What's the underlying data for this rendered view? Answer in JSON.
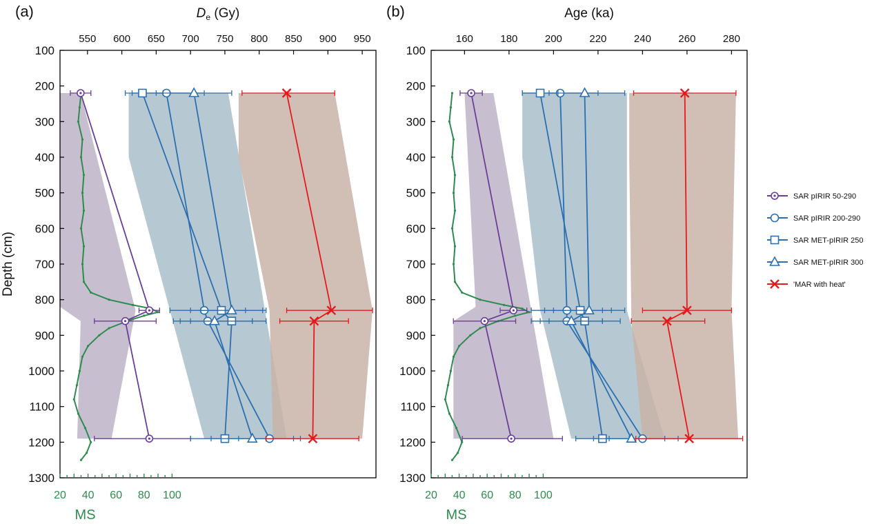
{
  "colors": {
    "purple": "#6a3d9a",
    "blue": "#2b6fb0",
    "red": "#e31a1c",
    "ms_green": "#2e8b4e",
    "band_purple": "#bdb4c7",
    "band_blue": "#a9bec9",
    "band_red": "#c9b4a8"
  },
  "legend": {
    "s1": "SAR pIRIR 50-290",
    "s2": "SAR pIRIR 200-290",
    "s3": "SAR MET-pIRIR 250",
    "s4": "SAR MET-pIRIR 300",
    "s5": "'MAR with heat'"
  },
  "chart_data": [
    {
      "type": "scatter",
      "panel_label": "(a)",
      "title_prefix": "D",
      "title_sub": "e",
      "title_suffix": " (Gy)",
      "ylabel": "Depth (cm)",
      "ylim": [
        1300,
        100
      ],
      "yticks": [
        100,
        200,
        300,
        400,
        500,
        600,
        700,
        800,
        900,
        1000,
        1100,
        1200,
        1300
      ],
      "xlim": [
        510,
        970
      ],
      "xticks": [
        550,
        600,
        650,
        700,
        750,
        800,
        850,
        900,
        950
      ],
      "ms_axis": {
        "label": "MS",
        "xlim": [
          20,
          120
        ],
        "ticks_labeled": [
          20,
          40,
          60,
          80,
          100
        ]
      },
      "bands": [
        {
          "color_key": "band_purple",
          "points": [
            [
              510,
              220
            ],
            [
              540,
              220
            ],
            [
              620,
              830
            ],
            [
              585,
              1190
            ],
            [
              535,
              1190
            ],
            [
              540,
              860
            ],
            [
              510,
              820
            ]
          ]
        },
        {
          "color_key": "band_blue",
          "points": [
            [
              610,
              220
            ],
            [
              755,
              220
            ],
            [
              840,
              1190
            ],
            [
              720,
              1190
            ],
            [
              670,
              830
            ],
            [
              610,
              400
            ]
          ]
        },
        {
          "color_key": "band_red",
          "points": [
            [
              770,
              220
            ],
            [
              910,
              220
            ],
            [
              965,
              830
            ],
            [
              950,
              1190
            ],
            [
              820,
              1190
            ],
            [
              815,
              830
            ],
            [
              770,
              400
            ]
          ]
        }
      ],
      "series": [
        {
          "name": "SAR pIRIR 50-290",
          "color_key": "purple",
          "marker": "circle-dot",
          "points": [
            {
              "x": 540,
              "y": 220,
              "err": [
                525,
                555
              ]
            },
            {
              "x": 640,
              "y": 830,
              "err": [
                625,
                655
              ]
            },
            {
              "x": 605,
              "y": 860,
              "err": [
                560,
                650
              ]
            },
            {
              "x": 640,
              "y": 1190,
              "err": [
                560,
                700
              ]
            }
          ]
        },
        {
          "name": "SAR pIRIR 200-290",
          "color_key": "blue",
          "marker": "circle",
          "points": [
            {
              "x": 665,
              "y": 220,
              "err": [
                615,
                720
              ]
            },
            {
              "x": 720,
              "y": 830,
              "err": [
                670,
                780
              ]
            },
            {
              "x": 725,
              "y": 860,
              "err": [
                675,
                790
              ]
            },
            {
              "x": 815,
              "y": 1190,
              "err": [
                770,
                860
              ]
            }
          ]
        },
        {
          "name": "SAR MET-pIRIR 250",
          "color_key": "blue",
          "marker": "square",
          "points": [
            {
              "x": 630,
              "y": 220,
              "err": [
                605,
                660
              ]
            },
            {
              "x": 745,
              "y": 830,
              "err": [
                700,
                805
              ]
            },
            {
              "x": 760,
              "y": 860,
              "err": [
                700,
                810
              ]
            },
            {
              "x": 750,
              "y": 1190,
              "err": [
                700,
                810
              ]
            }
          ]
        },
        {
          "name": "SAR MET-pIRIR 300",
          "color_key": "blue",
          "marker": "triangle",
          "points": [
            {
              "x": 705,
              "y": 220,
              "err": [
                650,
                760
              ]
            },
            {
              "x": 760,
              "y": 830,
              "err": [
                715,
                810
              ]
            },
            {
              "x": 735,
              "y": 860,
              "err": [
                685,
                790
              ]
            },
            {
              "x": 790,
              "y": 1190,
              "err": [
                730,
                850
              ]
            }
          ]
        },
        {
          "name": "'MAR with heat'",
          "color_key": "red",
          "marker": "x",
          "points": [
            {
              "x": 840,
              "y": 220,
              "err": [
                775,
                910
              ]
            },
            {
              "x": 905,
              "y": 830,
              "err": [
                840,
                965
              ]
            },
            {
              "x": 880,
              "y": 860,
              "err": [
                830,
                930
              ]
            },
            {
              "x": 878,
              "y": 1190,
              "err": [
                810,
                945
              ]
            }
          ]
        }
      ]
    },
    {
      "type": "scatter",
      "panel_label": "(b)",
      "title_prefix": "Age (ka)",
      "title_sub": "",
      "title_suffix": "",
      "ylabel": "",
      "ylim": [
        1300,
        100
      ],
      "yticks": [
        100,
        200,
        300,
        400,
        500,
        600,
        700,
        800,
        900,
        1000,
        1100,
        1200,
        1300
      ],
      "xlim": [
        145,
        287
      ],
      "xticks": [
        160,
        180,
        200,
        220,
        240,
        260,
        280
      ],
      "ms_axis": {
        "label": "MS",
        "xlim": [
          20,
          120
        ],
        "ticks_labeled": [
          20,
          40,
          60,
          80,
          100
        ]
      },
      "bands": [
        {
          "color_key": "band_purple",
          "points": [
            [
              160,
              220
            ],
            [
              173,
              220
            ],
            [
              190,
              830
            ],
            [
              200,
              1190
            ],
            [
              155,
              1190
            ],
            [
              155,
              860
            ],
            [
              165,
              820
            ]
          ]
        },
        {
          "color_key": "band_blue",
          "points": [
            [
              186,
              220
            ],
            [
              233,
              220
            ],
            [
              233,
              830
            ],
            [
              250,
              1190
            ],
            [
              208,
              1190
            ],
            [
              194,
              830
            ],
            [
              186,
              400
            ]
          ]
        },
        {
          "color_key": "band_red",
          "points": [
            [
              234,
              220
            ],
            [
              282,
              220
            ],
            [
              280,
              830
            ],
            [
              283,
              1190
            ],
            [
              240,
              1190
            ],
            [
              235,
              860
            ],
            [
              234,
              400
            ]
          ]
        }
      ],
      "series": [
        {
          "name": "SAR pIRIR 50-290",
          "color_key": "purple",
          "marker": "circle-dot",
          "points": [
            {
              "x": 163,
              "y": 220,
              "err": [
                158,
                168
              ]
            },
            {
              "x": 182,
              "y": 830,
              "err": [
                176,
                188
              ]
            },
            {
              "x": 169,
              "y": 860,
              "err": [
                155,
                183
              ]
            },
            {
              "x": 181,
              "y": 1190,
              "err": [
                159,
                204
              ]
            }
          ]
        },
        {
          "name": "SAR pIRIR 200-290",
          "color_key": "blue",
          "marker": "circle",
          "points": [
            {
              "x": 203,
              "y": 220,
              "err": [
                186,
                220
              ]
            },
            {
              "x": 206,
              "y": 830,
              "err": [
                190,
                222
              ]
            },
            {
              "x": 206,
              "y": 860,
              "err": [
                190,
                222
              ]
            },
            {
              "x": 240,
              "y": 1190,
              "err": [
                225,
                256
              ]
            }
          ]
        },
        {
          "name": "SAR MET-pIRIR 250",
          "color_key": "blue",
          "marker": "square",
          "points": [
            {
              "x": 194,
              "y": 220,
              "err": [
                186,
                202
              ]
            },
            {
              "x": 212,
              "y": 830,
              "err": [
                196,
                226
              ]
            },
            {
              "x": 214,
              "y": 860,
              "err": [
                198,
                230
              ]
            },
            {
              "x": 222,
              "y": 1190,
              "err": [
                210,
                234
              ]
            }
          ]
        },
        {
          "name": "SAR MET-pIRIR 300",
          "color_key": "blue",
          "marker": "triangle",
          "points": [
            {
              "x": 214,
              "y": 220,
              "err": [
                198,
                232
              ]
            },
            {
              "x": 216,
              "y": 830,
              "err": [
                200,
                232
              ]
            },
            {
              "x": 208,
              "y": 860,
              "err": [
                194,
                222
              ]
            },
            {
              "x": 235,
              "y": 1190,
              "err": [
                218,
                250
              ]
            }
          ]
        },
        {
          "name": "'MAR with heat'",
          "color_key": "red",
          "marker": "x",
          "points": [
            {
              "x": 259,
              "y": 220,
              "err": [
                236,
                282
              ]
            },
            {
              "x": 260,
              "y": 830,
              "err": [
                240,
                280
              ]
            },
            {
              "x": 251,
              "y": 860,
              "err": [
                235,
                268
              ]
            },
            {
              "x": 261,
              "y": 1190,
              "err": [
                237,
                285
              ]
            }
          ]
        }
      ]
    }
  ],
  "ms_curve": {
    "depth": [
      220,
      260,
      300,
      350,
      400,
      450,
      500,
      550,
      600,
      650,
      700,
      750,
      780,
      800,
      815,
      825,
      835,
      845,
      860,
      880,
      900,
      930,
      960,
      1000,
      1040,
      1080,
      1120,
      1160,
      1200,
      1230,
      1250
    ],
    "ms": [
      35,
      34,
      33,
      36,
      35,
      37,
      36,
      37,
      35,
      37,
      36,
      37,
      42,
      55,
      72,
      85,
      90,
      80,
      68,
      55,
      48,
      40,
      36,
      34,
      32,
      30,
      33,
      38,
      42,
      39,
      35
    ]
  }
}
